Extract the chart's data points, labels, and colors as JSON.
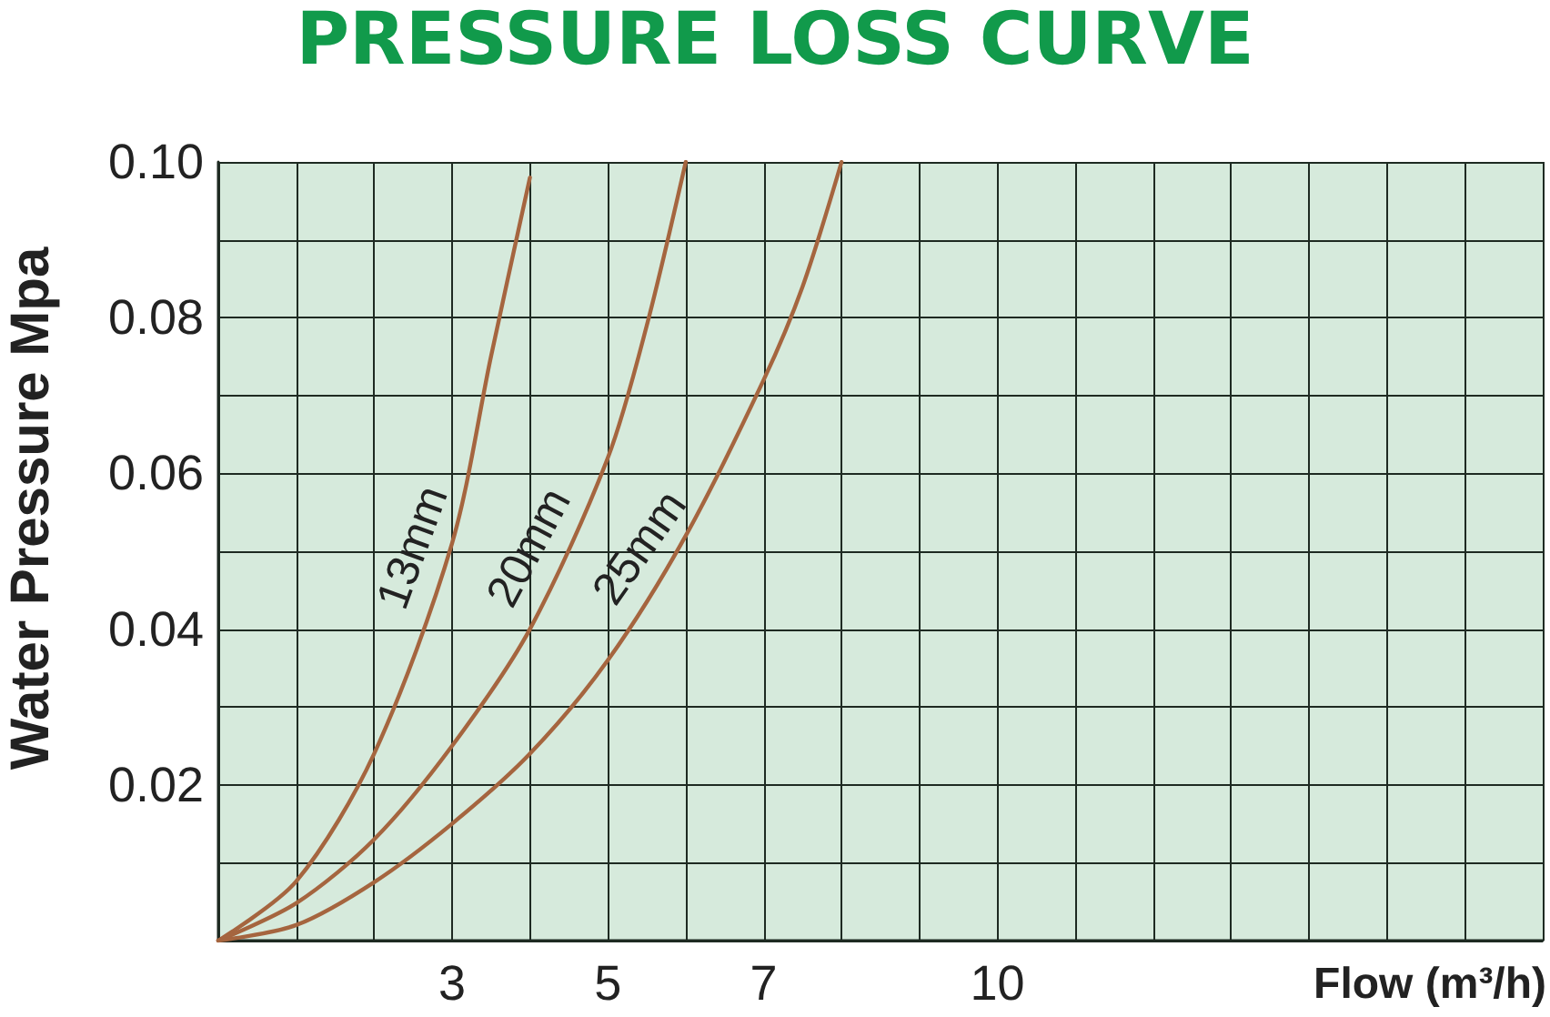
{
  "chart_data": {
    "type": "line",
    "title": "PRESSURE LOSS CURVE",
    "xlabel": "Flow (m³/h)",
    "ylabel": "Water Pressure Mpa",
    "series": [
      {
        "name": "13mm",
        "color": "#a5653f",
        "x": [
          0,
          1,
          2,
          3,
          3.5,
          4
        ],
        "values": [
          0,
          0.0076,
          0.024,
          0.051,
          0.075,
          0.098
        ]
      },
      {
        "name": "20mm",
        "color": "#a5653f",
        "x": [
          0,
          1,
          2,
          3,
          4,
          5,
          5.5,
          6
        ],
        "values": [
          0,
          0.0048,
          0.013,
          0.025,
          0.04,
          0.062,
          0.079,
          0.1
        ]
      },
      {
        "name": "25mm",
        "color": "#a5653f",
        "x": [
          0,
          1,
          2,
          3,
          4,
          5,
          6,
          7,
          7.5,
          8
        ],
        "values": [
          0,
          0.002,
          0.0075,
          0.015,
          0.024,
          0.036,
          0.052,
          0.072,
          0.084,
          0.1
        ]
      }
    ],
    "xlim": [
      0,
      17
    ],
    "ylim": [
      0,
      0.1
    ],
    "xticks": [
      {
        "value": 0,
        "label": null
      },
      {
        "value": 1,
        "label": null
      },
      {
        "value": 2,
        "label": null
      },
      3,
      {
        "value": 4,
        "label": null
      },
      5,
      {
        "value": 6,
        "label": null
      },
      7,
      {
        "value": 8,
        "label": null
      },
      {
        "value": 9,
        "label": null
      },
      10,
      {
        "value": 11,
        "label": null
      },
      {
        "value": 12,
        "label": null
      },
      {
        "value": 13,
        "label": null
      },
      {
        "value": 14,
        "label": null
      },
      {
        "value": 15,
        "label": null
      },
      {
        "value": 16,
        "label": null
      },
      {
        "value": 17,
        "label": null
      }
    ],
    "yticks": [
      {
        "value": 0,
        "label": null
      },
      {
        "value": 0.01,
        "label": null
      },
      0.02,
      {
        "value": 0.03,
        "label": null
      },
      0.04,
      {
        "value": 0.05,
        "label": null
      },
      0.06,
      {
        "value": 0.07,
        "label": null
      },
      0.08,
      {
        "value": 0.09,
        "label": null
      },
      {
        "value": 0.1,
        "label": "0.10"
      }
    ],
    "grid": true,
    "marker": "none",
    "line_style": "solid"
  }
}
